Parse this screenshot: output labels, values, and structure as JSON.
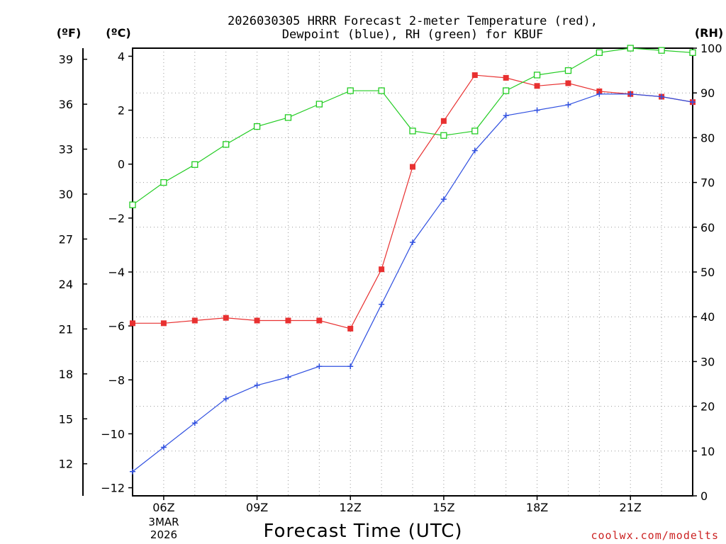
{
  "chart_data": {
    "type": "line",
    "title_line1": "2026030305 HRRR Forecast 2-meter Temperature (red),",
    "title_line2": "Dewpoint (blue), RH (green) for KBUF",
    "xlabel": "Forecast Time (UTC)",
    "date_label": {
      "month": "3MAR",
      "year": "2026"
    },
    "left_unit_f": "(ºF)",
    "left_unit_c": "(ºC)",
    "right_unit": "(RH)",
    "credit": "coolwx.com/modelts",
    "x_hours": [
      5,
      6,
      7,
      8,
      9,
      10,
      11,
      12,
      13,
      14,
      15,
      16,
      17,
      18,
      19,
      20,
      21,
      22,
      23
    ],
    "x_ticks": [
      {
        "hour": 6,
        "label": "06Z"
      },
      {
        "hour": 9,
        "label": "09Z"
      },
      {
        "hour": 12,
        "label": "12Z"
      },
      {
        "hour": 15,
        "label": "15Z"
      },
      {
        "hour": 18,
        "label": "18Z"
      },
      {
        "hour": 21,
        "label": "21Z"
      }
    ],
    "xlim": [
      5,
      23
    ],
    "ylim_c": [
      -12.3,
      4.3
    ],
    "yticks_c": [
      -12,
      -10,
      -8,
      -6,
      -4,
      -2,
      0,
      2,
      4
    ],
    "yticks_c_labels": [
      "−12",
      "−10",
      "−8",
      "−6",
      "−4",
      "−2",
      "0",
      "2",
      "4"
    ],
    "yticks_f": [
      12,
      15,
      18,
      21,
      24,
      27,
      30,
      33,
      36,
      39
    ],
    "ylim_rh": [
      0,
      100
    ],
    "yticks_rh": [
      0,
      10,
      20,
      30,
      40,
      50,
      60,
      70,
      80,
      90,
      100
    ],
    "series": [
      {
        "name": "Temperature",
        "unit": "C",
        "color": "#e83030",
        "marker": "filled-square",
        "values": [
          -5.9,
          -5.9,
          -5.8,
          -5.7,
          -5.8,
          -5.8,
          -5.8,
          -6.1,
          -3.9,
          -0.1,
          1.6,
          3.3,
          3.2,
          2.9,
          3.0,
          2.7,
          2.6,
          2.5,
          2.3
        ]
      },
      {
        "name": "Dewpoint",
        "unit": "C",
        "color": "#3050e0",
        "marker": "plus",
        "values": [
          -11.4,
          -10.5,
          -9.6,
          -8.7,
          -8.2,
          -7.9,
          -7.5,
          -7.5,
          -5.2,
          -2.9,
          -1.3,
          0.5,
          1.8,
          2.0,
          2.2,
          2.6,
          2.6,
          2.5,
          2.3
        ]
      },
      {
        "name": "RH",
        "unit": "%",
        "color": "#22cc22",
        "marker": "open-square",
        "values": [
          65,
          70,
          74,
          78.5,
          82.5,
          84.5,
          87.5,
          90.5,
          90.5,
          81.5,
          80.5,
          81.5,
          90.5,
          94,
          95,
          99,
          100,
          99.5,
          99
        ]
      }
    ]
  }
}
